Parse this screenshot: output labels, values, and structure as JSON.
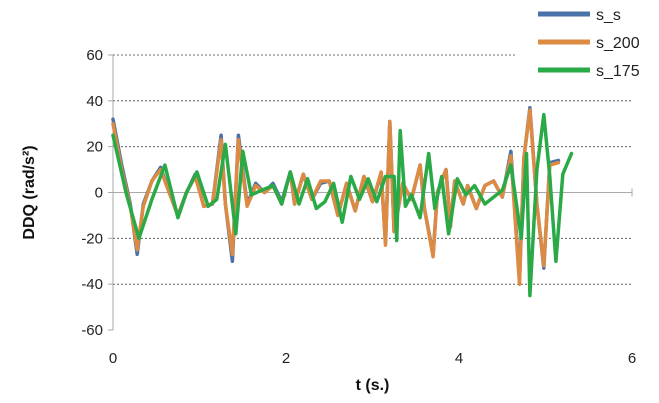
{
  "chart_data": {
    "type": "line",
    "xlabel": "t (s.)",
    "ylabel": "DDQ (rad/s²)",
    "xlim": [
      0,
      6
    ],
    "ylim": [
      -60,
      60
    ],
    "xticks": [
      0,
      2,
      4,
      6
    ],
    "yticks": [
      -60,
      -40,
      -20,
      0,
      20,
      40,
      60
    ],
    "grid": "horizontal dashed",
    "legend": "top-right",
    "series": [
      {
        "name": "s_s",
        "color": "#4a72a8",
        "points": [
          [
            0.0,
            32
          ],
          [
            0.1,
            12
          ],
          [
            0.2,
            -5
          ],
          [
            0.28,
            -27
          ],
          [
            0.35,
            -5
          ],
          [
            0.45,
            5
          ],
          [
            0.55,
            11
          ],
          [
            0.65,
            0
          ],
          [
            0.75,
            -10
          ],
          [
            0.85,
            0
          ],
          [
            0.95,
            8
          ],
          [
            1.05,
            -6
          ],
          [
            1.15,
            -5
          ],
          [
            1.25,
            25
          ],
          [
            1.3,
            -5
          ],
          [
            1.38,
            -30
          ],
          [
            1.45,
            25
          ],
          [
            1.55,
            -5
          ],
          [
            1.65,
            4
          ],
          [
            1.75,
            0
          ],
          [
            1.85,
            4
          ],
          [
            1.95,
            -4
          ],
          [
            2.05,
            9
          ],
          [
            2.1,
            -5
          ],
          [
            2.2,
            8
          ],
          [
            2.3,
            -3
          ],
          [
            2.4,
            4
          ],
          [
            2.5,
            5
          ],
          [
            2.6,
            -10
          ],
          [
            2.7,
            4
          ],
          [
            2.8,
            -8
          ],
          [
            2.9,
            7
          ],
          [
            3.0,
            -4
          ],
          [
            3.1,
            8
          ],
          [
            3.15,
            -22
          ],
          [
            3.2,
            31
          ],
          [
            3.25,
            -17
          ],
          [
            3.35,
            4
          ],
          [
            3.45,
            -3
          ],
          [
            3.55,
            12
          ],
          [
            3.6,
            -7
          ],
          [
            3.7,
            -27
          ],
          [
            3.75,
            0
          ],
          [
            3.85,
            10
          ],
          [
            3.9,
            -15
          ],
          [
            3.95,
            5
          ],
          [
            4.05,
            -5
          ],
          [
            4.1,
            3
          ],
          [
            4.2,
            -7
          ],
          [
            4.3,
            3
          ],
          [
            4.4,
            5
          ],
          [
            4.5,
            -2
          ],
          [
            4.6,
            18
          ],
          [
            4.7,
            -38
          ],
          [
            4.75,
            15
          ],
          [
            4.82,
            37
          ],
          [
            4.9,
            -5
          ],
          [
            4.98,
            -33
          ],
          [
            5.05,
            13
          ],
          [
            5.15,
            14
          ]
        ]
      },
      {
        "name": "s_200",
        "color": "#dd8a43",
        "points": [
          [
            0.0,
            30
          ],
          [
            0.1,
            10
          ],
          [
            0.2,
            -6
          ],
          [
            0.28,
            -25
          ],
          [
            0.35,
            -6
          ],
          [
            0.45,
            5
          ],
          [
            0.55,
            10
          ],
          [
            0.65,
            0
          ],
          [
            0.75,
            -10
          ],
          [
            0.85,
            0
          ],
          [
            0.95,
            7
          ],
          [
            1.05,
            -6
          ],
          [
            1.15,
            -5
          ],
          [
            1.25,
            23
          ],
          [
            1.3,
            -5
          ],
          [
            1.38,
            -27
          ],
          [
            1.45,
            23
          ],
          [
            1.55,
            -6
          ],
          [
            1.65,
            3
          ],
          [
            1.75,
            0
          ],
          [
            1.85,
            3
          ],
          [
            1.95,
            -5
          ],
          [
            2.05,
            9
          ],
          [
            2.1,
            -5
          ],
          [
            2.2,
            8
          ],
          [
            2.3,
            -3
          ],
          [
            2.4,
            5
          ],
          [
            2.5,
            5
          ],
          [
            2.6,
            -10
          ],
          [
            2.7,
            4
          ],
          [
            2.8,
            -8
          ],
          [
            2.9,
            7
          ],
          [
            3.0,
            -4
          ],
          [
            3.1,
            9
          ],
          [
            3.15,
            -23
          ],
          [
            3.2,
            31
          ],
          [
            3.25,
            -17
          ],
          [
            3.35,
            4
          ],
          [
            3.45,
            -3
          ],
          [
            3.55,
            12
          ],
          [
            3.6,
            -7
          ],
          [
            3.7,
            -28
          ],
          [
            3.75,
            0
          ],
          [
            3.85,
            10
          ],
          [
            3.9,
            -15
          ],
          [
            3.95,
            5
          ],
          [
            4.05,
            -5
          ],
          [
            4.1,
            3
          ],
          [
            4.2,
            -7
          ],
          [
            4.3,
            3
          ],
          [
            4.4,
            5
          ],
          [
            4.5,
            -2
          ],
          [
            4.6,
            16
          ],
          [
            4.7,
            -40
          ],
          [
            4.75,
            15
          ],
          [
            4.82,
            36
          ],
          [
            4.9,
            -5
          ],
          [
            4.98,
            -32
          ],
          [
            5.05,
            12
          ],
          [
            5.15,
            13
          ]
        ]
      },
      {
        "name": "s_175",
        "color": "#2aaa47",
        "points": [
          [
            0.0,
            25
          ],
          [
            0.15,
            0
          ],
          [
            0.3,
            -20
          ],
          [
            0.45,
            -3
          ],
          [
            0.6,
            12
          ],
          [
            0.75,
            -11
          ],
          [
            0.85,
            0
          ],
          [
            0.97,
            9
          ],
          [
            1.1,
            -6
          ],
          [
            1.2,
            -3
          ],
          [
            1.3,
            21
          ],
          [
            1.42,
            -18
          ],
          [
            1.5,
            18
          ],
          [
            1.6,
            -1
          ],
          [
            1.72,
            1
          ],
          [
            1.85,
            3
          ],
          [
            1.95,
            -5
          ],
          [
            2.05,
            9
          ],
          [
            2.15,
            -5
          ],
          [
            2.25,
            6
          ],
          [
            2.35,
            -7
          ],
          [
            2.45,
            -4
          ],
          [
            2.55,
            4
          ],
          [
            2.65,
            -13
          ],
          [
            2.75,
            7
          ],
          [
            2.85,
            -3
          ],
          [
            2.95,
            6
          ],
          [
            3.05,
            -4
          ],
          [
            3.15,
            7
          ],
          [
            3.25,
            7
          ],
          [
            3.28,
            -21
          ],
          [
            3.32,
            27
          ],
          [
            3.38,
            -6
          ],
          [
            3.45,
            -1
          ],
          [
            3.55,
            -11
          ],
          [
            3.65,
            17
          ],
          [
            3.72,
            -7
          ],
          [
            3.8,
            7
          ],
          [
            3.88,
            -18
          ],
          [
            3.98,
            6
          ],
          [
            4.08,
            -1
          ],
          [
            4.18,
            3
          ],
          [
            4.3,
            -5
          ],
          [
            4.4,
            -2
          ],
          [
            4.5,
            1
          ],
          [
            4.6,
            12
          ],
          [
            4.72,
            -20
          ],
          [
            4.78,
            17
          ],
          [
            4.82,
            -45
          ],
          [
            4.9,
            10
          ],
          [
            4.98,
            34
          ],
          [
            5.05,
            7
          ],
          [
            5.12,
            -30
          ],
          [
            5.2,
            8
          ],
          [
            5.3,
            17
          ]
        ]
      }
    ]
  }
}
